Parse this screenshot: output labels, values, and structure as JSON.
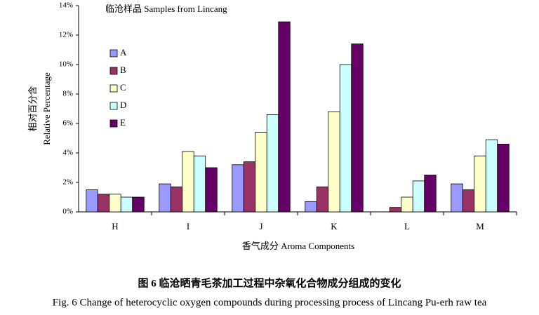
{
  "chart_data": {
    "type": "bar",
    "title": "临沧样品  Samples from Lincang",
    "y_label_cn": "相对百分含",
    "y_label_en": "Relative Percentage",
    "x_label": "香气成分  Aroma Components",
    "caption_cn": "图 6  临沧晒青毛茶加工过程中杂氧化合物成分组成的变化",
    "caption_en": "Fig. 6 Change of heterocyclic oxygen compounds during processing process of Lincang Pu-erh raw tea",
    "categories": [
      "H",
      "I",
      "J",
      "K",
      "L",
      "M"
    ],
    "series": [
      {
        "name": "A",
        "color": "#9999ff",
        "values": [
          1.5,
          1.9,
          3.2,
          0.7,
          0.0,
          1.9
        ]
      },
      {
        "name": "B",
        "color": "#993366",
        "values": [
          1.2,
          1.7,
          3.4,
          1.7,
          0.3,
          1.5
        ]
      },
      {
        "name": "C",
        "color": "#ffffcc",
        "values": [
          1.2,
          4.1,
          5.4,
          6.8,
          1.0,
          3.8
        ]
      },
      {
        "name": "D",
        "color": "#ccffff",
        "values": [
          1.0,
          3.8,
          6.6,
          10.0,
          2.1,
          4.9
        ]
      },
      {
        "name": "E",
        "color": "#660066",
        "values": [
          1.0,
          3.0,
          12.9,
          11.4,
          2.5,
          4.6
        ]
      }
    ],
    "ylim": [
      0,
      14
    ],
    "yticks": [
      {
        "value": 0,
        "label": "0%"
      },
      {
        "value": 2,
        "label": "2%"
      },
      {
        "value": 4,
        "label": "4%"
      },
      {
        "value": 6,
        "label": "6%"
      },
      {
        "value": 8,
        "label": "8%"
      },
      {
        "value": 10,
        "label": "10%"
      },
      {
        "value": 12,
        "label": "12%"
      },
      {
        "value": 14,
        "label": "14%"
      }
    ]
  }
}
